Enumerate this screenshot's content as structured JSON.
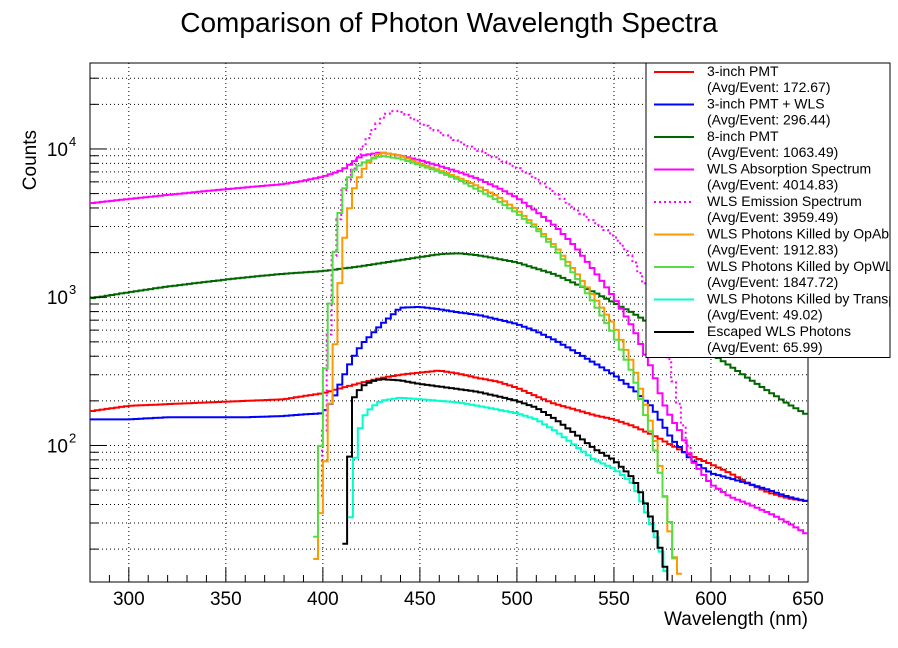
{
  "chart_data": {
    "type": "line",
    "title": "Comparison of Photon Wavelength Spectra",
    "xlabel": "Wavelength (nm)",
    "ylabel": "Counts",
    "xlim": [
      280,
      650
    ],
    "ylim": [
      12,
      38000
    ],
    "yscale": "log",
    "grid": true,
    "legend_position": "top-right",
    "x_ticks": [
      300,
      350,
      400,
      450,
      500,
      550,
      600,
      650
    ],
    "y_ticks": [
      {
        "value": 100,
        "base": "10",
        "exp": "2"
      },
      {
        "value": 1000,
        "base": "10",
        "exp": "3"
      },
      {
        "value": 10000,
        "base": "10",
        "exp": "4"
      }
    ],
    "series": [
      {
        "name": "3-inch PMT",
        "sub": "(Avg/Event: 172.67)",
        "color": "#ff0000",
        "dash": false,
        "x": [
          280,
          300,
          320,
          340,
          360,
          380,
          390,
          400,
          410,
          420,
          430,
          440,
          450,
          460,
          470,
          480,
          490,
          500,
          510,
          520,
          530,
          540,
          550,
          560,
          570,
          580,
          590,
          600,
          610,
          620,
          630,
          640,
          650
        ],
        "y": [
          170,
          185,
          190,
          195,
          200,
          205,
          215,
          225,
          245,
          265,
          285,
          300,
          310,
          320,
          305,
          285,
          270,
          245,
          215,
          190,
          175,
          160,
          150,
          135,
          118,
          100,
          85,
          75,
          65,
          55,
          48,
          44,
          42
        ]
      },
      {
        "name": "3-inch PMT + WLS",
        "sub": "(Avg/Event: 296.44)",
        "color": "#0000ff",
        "dash": false,
        "x": [
          280,
          300,
          320,
          340,
          360,
          380,
          390,
          400,
          405,
          410,
          415,
          420,
          430,
          440,
          450,
          460,
          470,
          480,
          490,
          500,
          510,
          520,
          530,
          540,
          550,
          560,
          570,
          575,
          580,
          590,
          600,
          610,
          620,
          630,
          640,
          650
        ],
        "y": [
          150,
          150,
          155,
          155,
          155,
          158,
          162,
          165,
          200,
          280,
          380,
          480,
          650,
          850,
          860,
          830,
          790,
          760,
          710,
          660,
          590,
          510,
          430,
          360,
          300,
          240,
          180,
          140,
          110,
          80,
          65,
          60,
          55,
          50,
          45,
          42
        ]
      },
      {
        "name": "8-inch PMT",
        "sub": "(Avg/Event: 1063.49)",
        "color": "#006600",
        "dash": false,
        "x": [
          280,
          300,
          320,
          340,
          360,
          380,
          400,
          420,
          440,
          460,
          470,
          480,
          500,
          520,
          540,
          560,
          570,
          580,
          590,
          600,
          620,
          640,
          650
        ],
        "y": [
          980,
          1080,
          1180,
          1270,
          1360,
          1440,
          1500,
          1620,
          1780,
          1950,
          1980,
          1920,
          1720,
          1420,
          1080,
          780,
          650,
          560,
          480,
          420,
          280,
          190,
          160
        ]
      },
      {
        "name": "WLS Absorption Spectrum",
        "sub": "(Avg/Event: 4014.83)",
        "color": "#ff00ff",
        "dash": false,
        "x": [
          280,
          300,
          320,
          340,
          360,
          380,
          390,
          400,
          410,
          420,
          430,
          440,
          450,
          460,
          470,
          480,
          490,
          500,
          510,
          520,
          530,
          540,
          550,
          560,
          570,
          575,
          580,
          585,
          590,
          600,
          610,
          620,
          630,
          640,
          650
        ],
        "y": [
          4300,
          4600,
          4900,
          5200,
          5500,
          5800,
          6100,
          6500,
          7200,
          9000,
          9500,
          9000,
          8400,
          7700,
          7000,
          6300,
          5500,
          4700,
          3800,
          3000,
          2200,
          1500,
          1000,
          620,
          320,
          200,
          150,
          120,
          80,
          55,
          45,
          40,
          35,
          30,
          25
        ]
      },
      {
        "name": "WLS Emission Spectrum",
        "sub": "(Avg/Event: 3959.49)",
        "color": "#ff00ff",
        "dash": true,
        "x": [
          397,
          400,
          405,
          410,
          415,
          420,
          425,
          430,
          435,
          440,
          450,
          460,
          470,
          480,
          490,
          500,
          510,
          520,
          530,
          540,
          550,
          560,
          565,
          570,
          575,
          580,
          585,
          590
        ],
        "y": [
          30,
          80,
          1600,
          5000,
          7000,
          10000,
          13000,
          16000,
          18000,
          18000,
          15000,
          13000,
          11200,
          9800,
          8600,
          7500,
          6300,
          5000,
          3900,
          3200,
          2600,
          1800,
          1300,
          950,
          600,
          300,
          150,
          80
        ]
      },
      {
        "name": "WLS Photons Killed by OpAbsorption",
        "sub": "(Avg/Event: 1912.83)",
        "color": "#ff9900",
        "dash": false,
        "x": [
          395,
          400,
          405,
          410,
          415,
          420,
          425,
          430,
          440,
          450,
          460,
          470,
          480,
          490,
          500,
          510,
          520,
          530,
          540,
          550,
          560,
          570,
          575,
          580,
          585
        ],
        "y": [
          12,
          50,
          300,
          2000,
          5000,
          7000,
          8500,
          9500,
          9000,
          8000,
          7200,
          6400,
          5600,
          4800,
          3900,
          3000,
          2200,
          1500,
          1000,
          650,
          350,
          130,
          60,
          20,
          12
        ]
      },
      {
        "name": "WLS Photons Killed by OpWLS",
        "sub": "(Avg/Event: 1847.72)",
        "color": "#55dd44",
        "dash": false,
        "x": [
          395,
          400,
          405,
          410,
          415,
          420,
          425,
          430,
          440,
          450,
          460,
          470,
          480,
          490,
          500,
          510,
          520,
          530,
          540,
          550,
          560,
          570,
          575,
          580,
          582
        ],
        "y": [
          12,
          200,
          1500,
          5000,
          7000,
          8000,
          8500,
          9000,
          8600,
          7800,
          7000,
          6200,
          5300,
          4500,
          3700,
          2900,
          2100,
          1400,
          900,
          560,
          300,
          110,
          55,
          25,
          12
        ]
      },
      {
        "name": "WLS Photons Killed by Transportation",
        "sub": "(Avg/Event: 49.02)",
        "color": "#00ffcc",
        "dash": false,
        "x": [
          413,
          415,
          420,
          425,
          430,
          440,
          450,
          460,
          470,
          480,
          490,
          500,
          510,
          520,
          530,
          540,
          550,
          560,
          565,
          570,
          575,
          578
        ],
        "y": [
          12,
          60,
          150,
          180,
          200,
          210,
          205,
          200,
          195,
          185,
          175,
          165,
          150,
          125,
          100,
          80,
          70,
          55,
          40,
          28,
          18,
          12
        ]
      },
      {
        "name": "Escaped WLS Photons",
        "sub": "(Avg/Event: 65.99)",
        "color": "#000000",
        "dash": false,
        "x": [
          410,
          413,
          415,
          420,
          425,
          430,
          440,
          450,
          460,
          470,
          480,
          490,
          500,
          510,
          520,
          530,
          540,
          550,
          560,
          565,
          570,
          575,
          578
        ],
        "y": [
          12,
          50,
          200,
          250,
          270,
          280,
          275,
          260,
          250,
          240,
          230,
          215,
          200,
          180,
          150,
          120,
          95,
          80,
          60,
          45,
          30,
          18,
          12
        ]
      }
    ]
  }
}
